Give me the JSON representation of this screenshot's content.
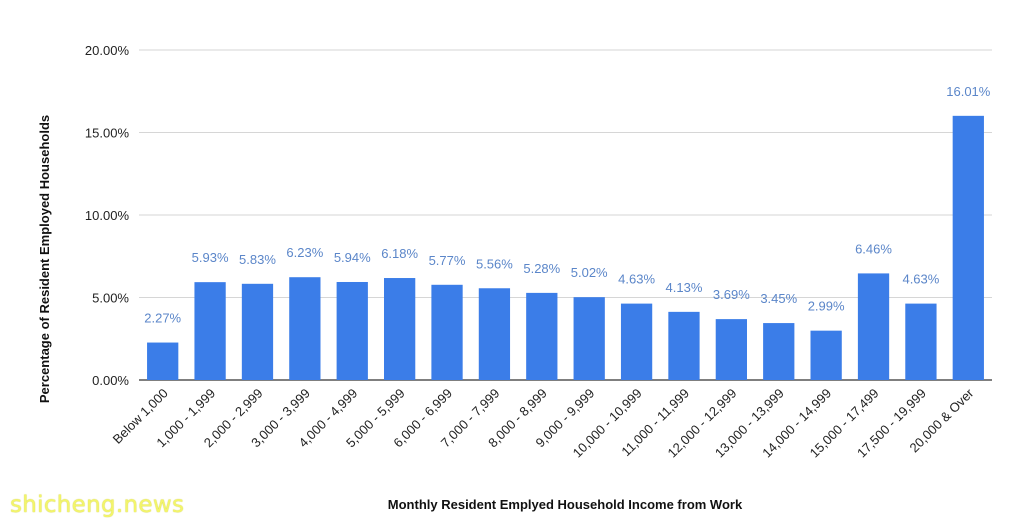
{
  "chart_data": {
    "type": "bar",
    "title": "",
    "xlabel": "Monthly Resident Emplyed Household Income from Work",
    "ylabel": "Percentage of Resident  Employed Households",
    "ylim": [
      0,
      20
    ],
    "yticks": [
      "0.00%",
      "5.00%",
      "10.00%",
      "15.00%",
      "20.00%"
    ],
    "grid": true,
    "legend": "none",
    "bar_color": "#3b7de8",
    "label_color": "#5b86c9",
    "categories": [
      "Below 1,000",
      "1,000 - 1,999",
      "2,000 - 2,999",
      "3,000 - 3,999",
      "4,000 - 4,999",
      "5,000 - 5,999",
      "6,000 - 6,999",
      "7,000 - 7,999",
      "8,000 - 8,999",
      "9,000 - 9,999",
      "10,000 - 10,999",
      "11,000 - 11,999",
      "12,000 - 12,999",
      "13,000 - 13,999",
      "14,000 - 14,999",
      "15,000 - 17,499",
      "17,500 - 19,999",
      "20,000 & Over"
    ],
    "values": [
      2.27,
      5.93,
      5.83,
      6.23,
      5.94,
      6.18,
      5.77,
      5.56,
      5.28,
      5.02,
      4.63,
      4.13,
      3.69,
      3.45,
      2.99,
      6.46,
      4.63,
      16.01
    ],
    "value_labels": [
      "2.27%",
      "5.93%",
      "5.83%",
      "6.23%",
      "5.94%",
      "6.18%",
      "5.77%",
      "5.56%",
      "5.28%",
      "5.02%",
      "4.63%",
      "4.13%",
      "3.69%",
      "3.45%",
      "2.99%",
      "6.46%",
      "4.63%",
      "16.01%"
    ]
  },
  "watermark": "shicheng.news"
}
